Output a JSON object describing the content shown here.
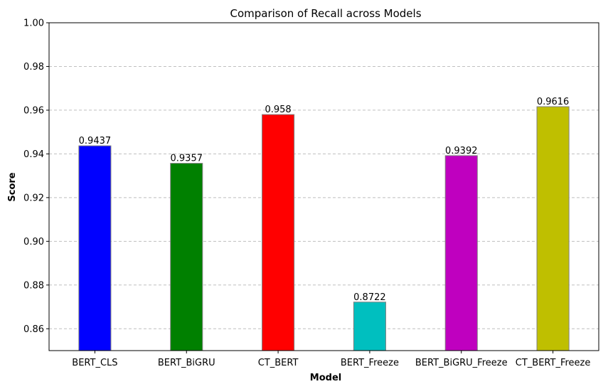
{
  "chart_data": {
    "type": "bar",
    "title": "Comparison of Recall across Models",
    "xlabel": "Model",
    "ylabel": "Score",
    "categories": [
      "BERT_CLS",
      "BERT_BiGRU",
      "CT_BERT",
      "BERT_Freeze",
      "BERT_BiGRU_Freeze",
      "CT_BERT_Freeze"
    ],
    "values": [
      0.9437,
      0.9357,
      0.958,
      0.8722,
      0.9392,
      0.9616
    ],
    "value_labels": [
      "0.9437",
      "0.9357",
      "0.958",
      "0.8722",
      "0.9392",
      "0.9616"
    ],
    "colors": [
      "#0000ff",
      "#008000",
      "#ff0000",
      "#00bfbf",
      "#bf00bf",
      "#bfbf00"
    ],
    "ylim": [
      0.85,
      1.0
    ],
    "yticks": [
      0.86,
      0.88,
      0.9,
      0.92,
      0.94,
      0.96,
      0.98,
      1.0
    ],
    "ytick_labels": [
      "0.86",
      "0.88",
      "0.90",
      "0.92",
      "0.94",
      "0.96",
      "0.98",
      "1.00"
    ],
    "grid": "y-dashed",
    "legend": "none"
  }
}
